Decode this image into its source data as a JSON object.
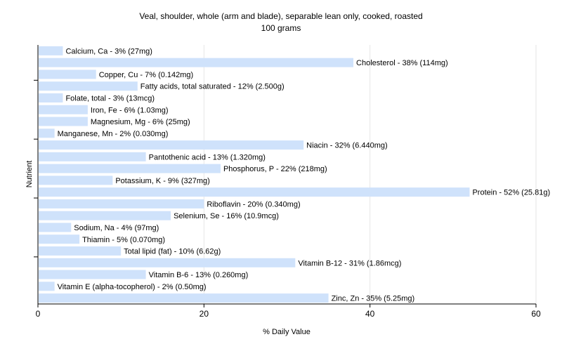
{
  "title_line1": "Veal, shoulder, whole (arm and blade), separable lean only, cooked, roasted",
  "title_line2": "100 grams",
  "chart_data": {
    "type": "bar",
    "orientation": "horizontal",
    "title": "Veal, shoulder, whole (arm and blade), separable lean only, cooked, roasted",
    "subtitle": "100 grams",
    "xlabel": "% Daily Value",
    "ylabel": "Nutrient",
    "xlim": [
      0,
      60
    ],
    "xticks": [
      0,
      20,
      40,
      60
    ],
    "grid": true,
    "bar_color": "#cfe2fb",
    "grid_color": "#e6e6e6",
    "categories": [
      "Calcium, Ca",
      "Cholesterol",
      "Copper, Cu",
      "Fatty acids, total saturated",
      "Folate, total",
      "Iron, Fe",
      "Magnesium, Mg",
      "Manganese, Mn",
      "Niacin",
      "Pantothenic acid",
      "Phosphorus, P",
      "Potassium, K",
      "Protein",
      "Riboflavin",
      "Selenium, Se",
      "Sodium, Na",
      "Thiamin",
      "Total lipid (fat)",
      "Vitamin B-12",
      "Vitamin B-6",
      "Vitamin E (alpha-tocopherol)",
      "Zinc, Zn"
    ],
    "values": [
      3,
      38,
      7,
      12,
      3,
      6,
      6,
      2,
      32,
      13,
      22,
      9,
      52,
      20,
      16,
      4,
      5,
      10,
      31,
      13,
      2,
      35
    ],
    "labels": [
      "Calcium, Ca - 3% (27mg)",
      "Cholesterol - 38% (114mg)",
      "Copper, Cu - 7% (0.142mg)",
      "Fatty acids, total saturated - 12% (2.500g)",
      "Folate, total - 3% (13mcg)",
      "Iron, Fe - 6% (1.03mg)",
      "Magnesium, Mg - 6% (25mg)",
      "Manganese, Mn - 2% (0.030mg)",
      "Niacin - 32% (6.440mg)",
      "Pantothenic acid - 13% (1.320mg)",
      "Phosphorus, P - 22% (218mg)",
      "Potassium, K - 9% (327mg)",
      "Protein - 52% (25.81g)",
      "Riboflavin - 20% (0.340mg)",
      "Selenium, Se - 16% (10.9mcg)",
      "Sodium, Na - 4% (97mg)",
      "Thiamin - 5% (0.070mg)",
      "Total lipid (fat) - 10% (6.62g)",
      "Vitamin B-12 - 31% (1.86mcg)",
      "Vitamin B-6 - 13% (0.260mg)",
      "Vitamin E (alpha-tocopherol) - 2% (0.50mg)",
      "Zinc, Zn - 35% (5.25mg)"
    ]
  }
}
